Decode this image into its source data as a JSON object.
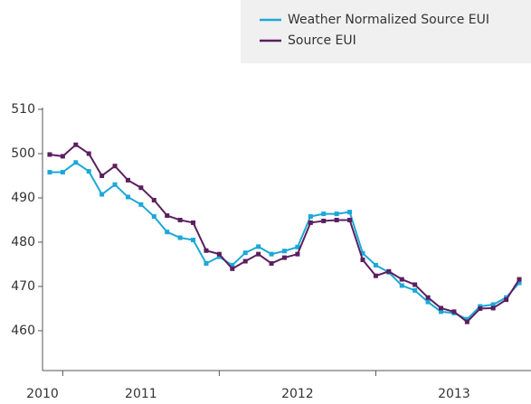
{
  "chart_data": {
    "type": "line",
    "categories": [
      null,
      null,
      null,
      null,
      null,
      null,
      null,
      null,
      null,
      null,
      null,
      null,
      null,
      null,
      null,
      null,
      null,
      null,
      null,
      null,
      null,
      null,
      null,
      null,
      null,
      null,
      null,
      null,
      null,
      null,
      null,
      null,
      null,
      null,
      null,
      null,
      null
    ],
    "xlim": [
      -0.55,
      36.9
    ],
    "xticks": [
      1,
      13,
      25
    ],
    "x_axis_labels": [
      {
        "value": -0.55,
        "label": "2010"
      },
      {
        "value": 7,
        "label": "2011"
      },
      {
        "value": 19,
        "label": "2012"
      },
      {
        "value": 31,
        "label": "2013"
      }
    ],
    "ylim": [
      451,
      510
    ],
    "yticks": [
      460,
      470,
      480,
      490,
      500,
      510
    ],
    "legend": "top-right",
    "series": [
      {
        "name": "Weather Normalized Source EUI",
        "color": "#1ba8d8",
        "values": [
          495.8,
          495.8,
          498,
          496,
          490.8,
          493,
          490.2,
          488.5,
          485.8,
          482.3,
          481,
          480.5,
          475.2,
          476.7,
          474.8,
          477.6,
          479,
          477.3,
          478,
          478.9,
          485.8,
          486.4,
          486.4,
          486.8,
          477.5,
          474.8,
          473.2,
          470.2,
          469.1,
          466.5,
          464.3,
          464,
          462.6,
          465.5,
          465.9,
          467.5,
          470.8
        ]
      },
      {
        "name": "Source EUI",
        "color": "#5b1f5f",
        "values": [
          499.8,
          499.4,
          502,
          500,
          495,
          497.2,
          494,
          492.3,
          489.5,
          486,
          485,
          484.4,
          478.1,
          477.3,
          474,
          475.7,
          477.3,
          475.2,
          476.5,
          477.3,
          484.4,
          484.8,
          485,
          485,
          476,
          472.4,
          473.4,
          471.6,
          470.4,
          467.5,
          465.1,
          464.3,
          462,
          465,
          465.1,
          467,
          471.6
        ]
      }
    ]
  }
}
